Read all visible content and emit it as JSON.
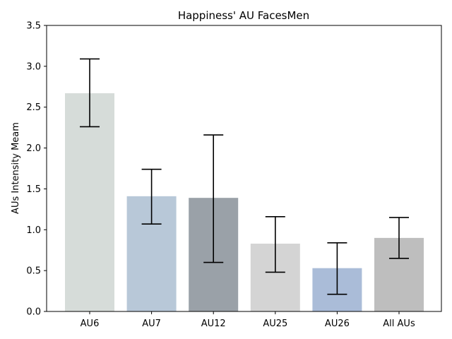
{
  "chart_data": {
    "type": "bar",
    "title": "Happiness' AU FacesMen",
    "xlabel": "",
    "ylabel": "AUs Intensity Meam",
    "categories": [
      "AU6",
      "AU7",
      "AU12",
      "AU25",
      "AU26",
      "All AUs"
    ],
    "values": [
      2.67,
      1.41,
      1.39,
      0.83,
      0.53,
      0.9
    ],
    "error_low": [
      2.26,
      1.07,
      0.6,
      0.48,
      0.21,
      0.65
    ],
    "error_high": [
      3.09,
      1.74,
      2.16,
      1.16,
      0.84,
      1.15
    ],
    "bar_colors": [
      "#d6dcd9",
      "#b8c8d8",
      "#9aa1a8",
      "#d4d4d4",
      "#aabcd8",
      "#bebebe"
    ],
    "ylim": [
      0,
      3.5
    ],
    "yticks": [
      "0.0",
      "0.5",
      "1.0",
      "1.5",
      "2.0",
      "2.5",
      "3.0",
      "3.5"
    ],
    "grid": false,
    "legend": "none"
  }
}
